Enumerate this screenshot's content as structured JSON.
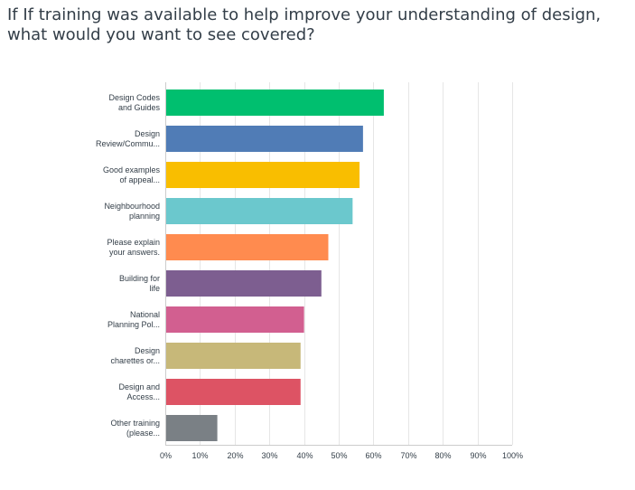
{
  "question_title": "If If training was available to help improve your understanding of design, what would you want to see covered?",
  "chart_data": {
    "type": "bar",
    "orientation": "horizontal",
    "title": "If If training was available to help improve your understanding of design, what would you want to see covered?",
    "xlabel": "",
    "ylabel": "",
    "xlim": [
      0,
      100
    ],
    "grid": true,
    "categories": [
      [
        "Design Codes",
        "and Guides"
      ],
      [
        "Design",
        "Review/Commu..."
      ],
      [
        "Good examples",
        "of appeal..."
      ],
      [
        "Neighbourhood",
        "planning"
      ],
      [
        "Please explain",
        "your answers."
      ],
      [
        "Building for",
        "life"
      ],
      [
        "National",
        "Planning Pol..."
      ],
      [
        "Design",
        "charettes or..."
      ],
      [
        "Design and",
        "Access..."
      ],
      [
        "Other training",
        "(please..."
      ]
    ],
    "values": [
      63,
      57,
      56,
      54,
      47,
      45,
      40,
      39,
      39,
      15
    ],
    "colors": [
      "#00bf6f",
      "#507cb6",
      "#f9be00",
      "#6bc8cd",
      "#ff8b4f",
      "#7d5e90",
      "#d25f90",
      "#c7b879",
      "#dd5364",
      "#7a8085"
    ],
    "ticks": [
      "0%",
      "10%",
      "20%",
      "30%",
      "40%",
      "50%",
      "60%",
      "70%",
      "80%",
      "90%",
      "100%"
    ]
  }
}
